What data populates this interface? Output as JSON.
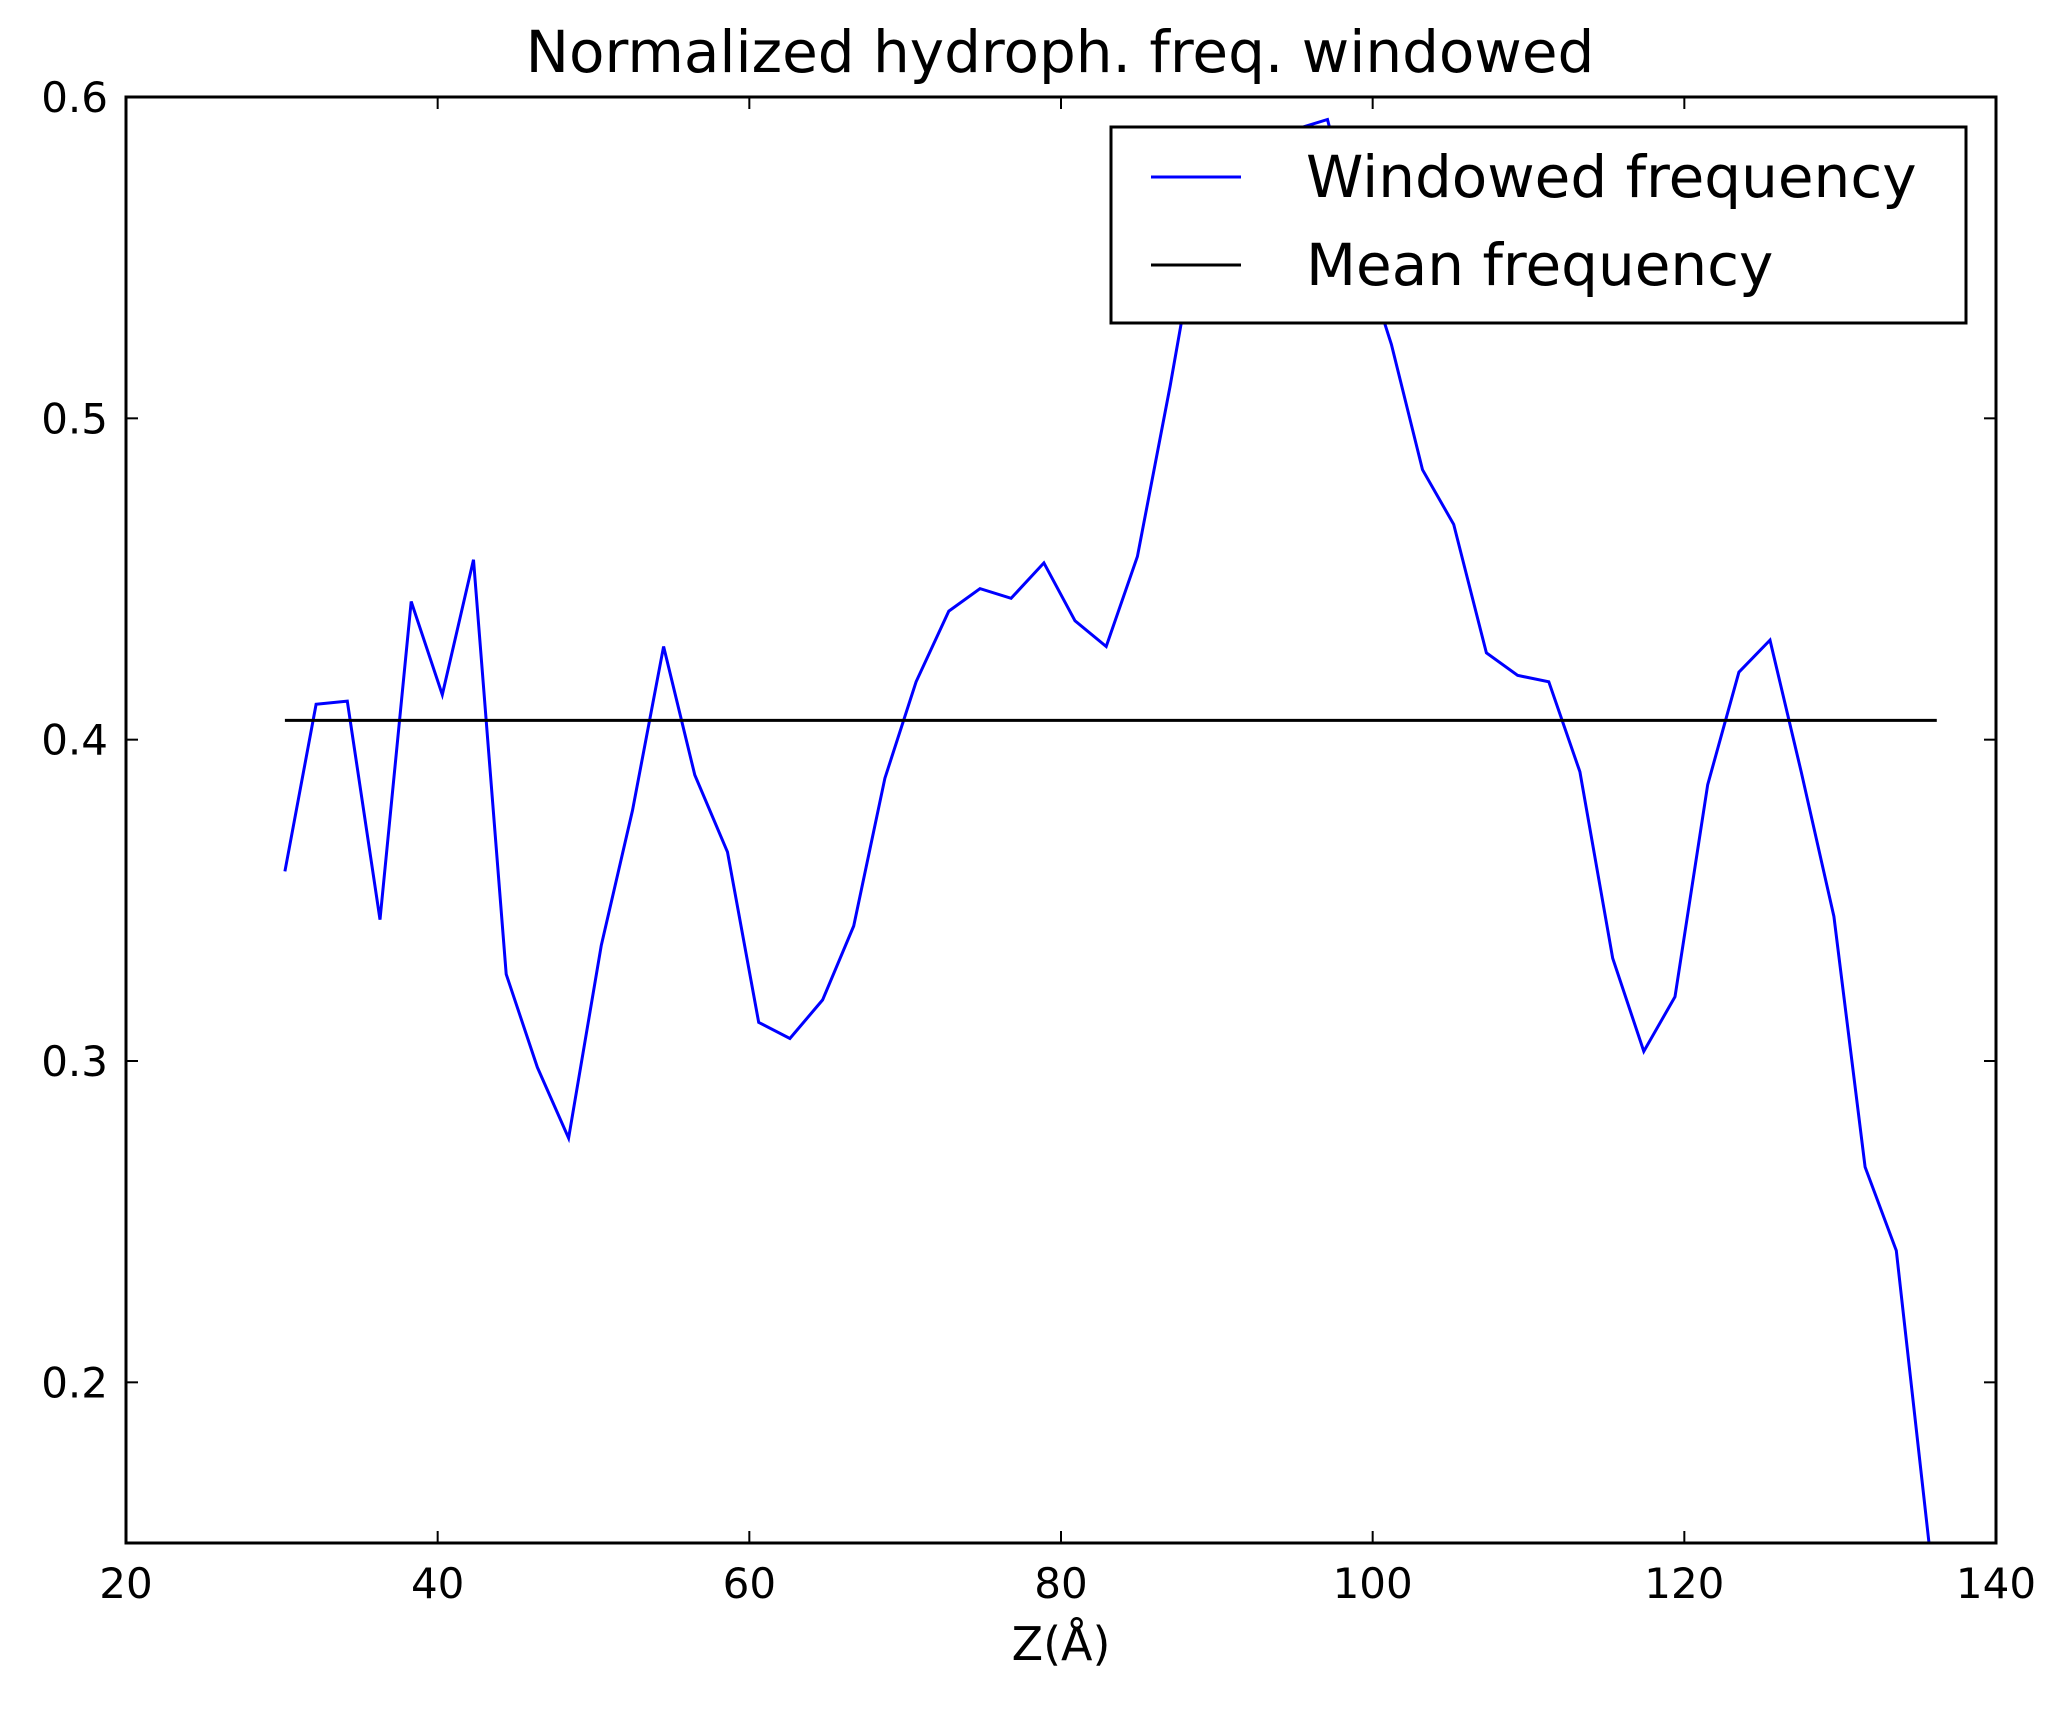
{
  "chart_data": {
    "type": "line",
    "title": "Normalized hydroph. freq. windowed",
    "xlabel": "Z(Å)",
    "ylabel": "",
    "xlim": [
      20,
      140
    ],
    "ylim": [
      0.15,
      0.6
    ],
    "xticks": [
      20,
      40,
      60,
      80,
      100,
      120,
      140
    ],
    "xtick_labels": [
      "20",
      "40",
      "60",
      "80",
      "100",
      "120",
      "140"
    ],
    "yticks": [
      0.2,
      0.3,
      0.4,
      0.5,
      0.6
    ],
    "ytick_labels": [
      "0.2",
      "0.3",
      "0.4",
      "0.5",
      "0.6"
    ],
    "grid": false,
    "legend_position": "top-right",
    "series": [
      {
        "name": "Windowed frequency",
        "color": "#0000ff",
        "x": [
          30.2,
          32.2,
          34.2,
          36.3,
          38.3,
          40.3,
          42.3,
          44.4,
          46.4,
          48.4,
          50.5,
          52.5,
          54.5,
          56.5,
          58.6,
          60.6,
          62.6,
          64.7,
          66.7,
          68.7,
          70.7,
          72.8,
          74.8,
          76.8,
          78.9,
          80.9,
          82.9,
          84.9,
          87.0,
          89.0,
          91.0,
          93.1,
          95.1,
          97.1,
          99.1,
          101.2,
          103.2,
          105.2,
          107.3,
          109.3,
          111.3,
          113.3,
          115.4,
          117.4,
          119.4,
          121.5,
          123.5,
          125.5,
          127.5,
          129.6,
          131.6,
          133.6,
          135.7
        ],
        "y": [
          0.359,
          0.411,
          0.412,
          0.344,
          0.443,
          0.414,
          0.456,
          0.327,
          0.298,
          0.276,
          0.336,
          0.378,
          0.429,
          0.389,
          0.365,
          0.312,
          0.307,
          0.319,
          0.342,
          0.388,
          0.418,
          0.44,
          0.447,
          0.444,
          0.455,
          0.437,
          0.429,
          0.457,
          0.51,
          0.565,
          0.585,
          0.588,
          0.59,
          0.593,
          0.555,
          0.523,
          0.484,
          0.467,
          0.427,
          0.42,
          0.418,
          0.39,
          0.332,
          0.303,
          0.32,
          0.386,
          0.421,
          0.431,
          0.39,
          0.345,
          0.267,
          0.241,
          0.15
        ]
      },
      {
        "name": "Mean frequency",
        "color": "#000000",
        "x": [
          30.2,
          136.2
        ],
        "y": [
          0.406,
          0.406
        ]
      }
    ]
  }
}
